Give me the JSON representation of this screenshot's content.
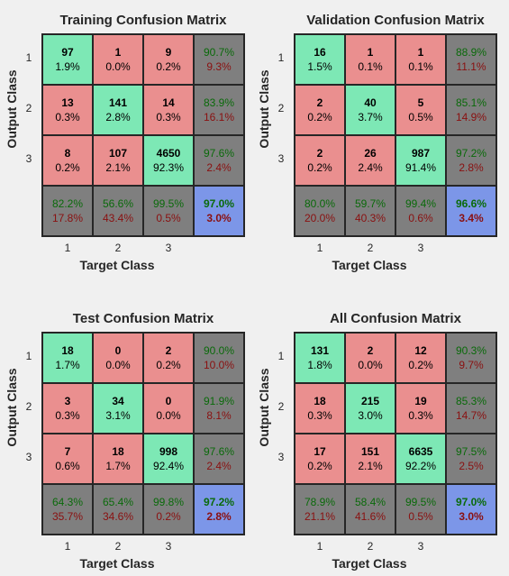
{
  "chart_data": [
    {
      "type": "heatmap",
      "title": "Training Confusion Matrix",
      "xlabel": "Target Class",
      "ylabel": "Output Class",
      "classes": [
        "1",
        "2",
        "3"
      ],
      "cells": [
        [
          {
            "n": "97",
            "p": "1.9%"
          },
          {
            "n": "1",
            "p": "0.0%"
          },
          {
            "n": "9",
            "p": "0.2%"
          }
        ],
        [
          {
            "n": "13",
            "p": "0.3%"
          },
          {
            "n": "141",
            "p": "2.8%"
          },
          {
            "n": "14",
            "p": "0.3%"
          }
        ],
        [
          {
            "n": "8",
            "p": "0.2%"
          },
          {
            "n": "107",
            "p": "2.1%"
          },
          {
            "n": "4650",
            "p": "92.3%"
          }
        ]
      ],
      "row_summary": [
        [
          "90.7%",
          "9.3%"
        ],
        [
          "83.9%",
          "16.1%"
        ],
        [
          "97.6%",
          "2.4%"
        ]
      ],
      "col_summary": [
        [
          "82.2%",
          "17.8%"
        ],
        [
          "56.6%",
          "43.4%"
        ],
        [
          "99.5%",
          "0.5%"
        ]
      ],
      "total": [
        "97.0%",
        "3.0%"
      ]
    },
    {
      "type": "heatmap",
      "title": "Validation Confusion Matrix",
      "xlabel": "Target Class",
      "ylabel": "Output Class",
      "classes": [
        "1",
        "2",
        "3"
      ],
      "cells": [
        [
          {
            "n": "16",
            "p": "1.5%"
          },
          {
            "n": "1",
            "p": "0.1%"
          },
          {
            "n": "1",
            "p": "0.1%"
          }
        ],
        [
          {
            "n": "2",
            "p": "0.2%"
          },
          {
            "n": "40",
            "p": "3.7%"
          },
          {
            "n": "5",
            "p": "0.5%"
          }
        ],
        [
          {
            "n": "2",
            "p": "0.2%"
          },
          {
            "n": "26",
            "p": "2.4%"
          },
          {
            "n": "987",
            "p": "91.4%"
          }
        ]
      ],
      "row_summary": [
        [
          "88.9%",
          "11.1%"
        ],
        [
          "85.1%",
          "14.9%"
        ],
        [
          "97.2%",
          "2.8%"
        ]
      ],
      "col_summary": [
        [
          "80.0%",
          "20.0%"
        ],
        [
          "59.7%",
          "40.3%"
        ],
        [
          "99.4%",
          "0.6%"
        ]
      ],
      "total": [
        "96.6%",
        "3.4%"
      ]
    },
    {
      "type": "heatmap",
      "title": "Test Confusion Matrix",
      "xlabel": "Target Class",
      "ylabel": "Output Class",
      "classes": [
        "1",
        "2",
        "3"
      ],
      "cells": [
        [
          {
            "n": "18",
            "p": "1.7%"
          },
          {
            "n": "0",
            "p": "0.0%"
          },
          {
            "n": "2",
            "p": "0.2%"
          }
        ],
        [
          {
            "n": "3",
            "p": "0.3%"
          },
          {
            "n": "34",
            "p": "3.1%"
          },
          {
            "n": "0",
            "p": "0.0%"
          }
        ],
        [
          {
            "n": "7",
            "p": "0.6%"
          },
          {
            "n": "18",
            "p": "1.7%"
          },
          {
            "n": "998",
            "p": "92.4%"
          }
        ]
      ],
      "row_summary": [
        [
          "90.0%",
          "10.0%"
        ],
        [
          "91.9%",
          "8.1%"
        ],
        [
          "97.6%",
          "2.4%"
        ]
      ],
      "col_summary": [
        [
          "64.3%",
          "35.7%"
        ],
        [
          "65.4%",
          "34.6%"
        ],
        [
          "99.8%",
          "0.2%"
        ]
      ],
      "total": [
        "97.2%",
        "2.8%"
      ]
    },
    {
      "type": "heatmap",
      "title": "All Confusion Matrix",
      "xlabel": "Target Class",
      "ylabel": "Output Class",
      "classes": [
        "1",
        "2",
        "3"
      ],
      "cells": [
        [
          {
            "n": "131",
            "p": "1.8%"
          },
          {
            "n": "2",
            "p": "0.0%"
          },
          {
            "n": "12",
            "p": "0.2%"
          }
        ],
        [
          {
            "n": "18",
            "p": "0.3%"
          },
          {
            "n": "215",
            "p": "3.0%"
          },
          {
            "n": "19",
            "p": "0.3%"
          }
        ],
        [
          {
            "n": "17",
            "p": "0.2%"
          },
          {
            "n": "151",
            "p": "2.1%"
          },
          {
            "n": "6635",
            "p": "92.2%"
          }
        ]
      ],
      "row_summary": [
        [
          "90.3%",
          "9.7%"
        ],
        [
          "85.3%",
          "14.7%"
        ],
        [
          "97.5%",
          "2.5%"
        ]
      ],
      "col_summary": [
        [
          "78.9%",
          "21.1%"
        ],
        [
          "58.4%",
          "41.6%"
        ],
        [
          "99.5%",
          "0.5%"
        ]
      ],
      "total": [
        "97.0%",
        "3.0%"
      ]
    }
  ],
  "colors": {
    "correct": "#7de8b5",
    "incorrect": "#ea8f8f",
    "summary": "#7f7f7f",
    "overall": "#7c96e8"
  }
}
